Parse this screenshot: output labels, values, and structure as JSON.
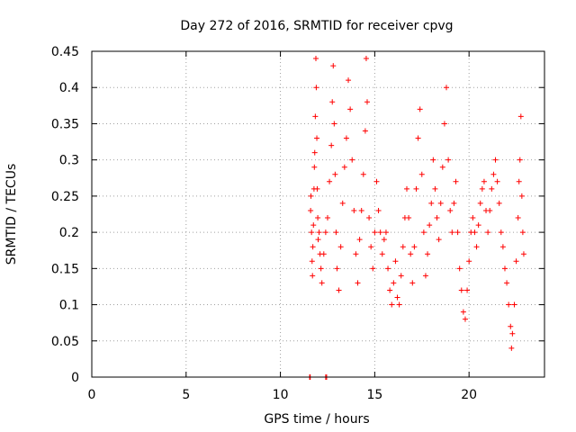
{
  "chart_data": {
    "type": "scatter",
    "title": "Day 272 of 2016, SRMTID for receiver cpvg",
    "xlabel": "GPS time / hours",
    "ylabel": "SRMTID / TECUs",
    "xlim": [
      0,
      24
    ],
    "ylim": [
      0,
      0.45
    ],
    "xticks": [
      "0",
      "5",
      "10",
      "15",
      "20"
    ],
    "yticks": [
      "0",
      "0.05",
      "0.1",
      "0.15",
      "0.2",
      "0.25",
      "0.3",
      "0.35",
      "0.4",
      "0.45"
    ],
    "grid": true,
    "marker": "+",
    "color": "#ff0000",
    "series": [
      {
        "points": [
          [
            11.55,
            0.0
          ],
          [
            11.58,
            0.0
          ],
          [
            12.4,
            0.0
          ],
          [
            12.45,
            0.0
          ],
          [
            11.6,
            0.23
          ],
          [
            11.62,
            0.25
          ],
          [
            11.65,
            0.2
          ],
          [
            11.68,
            0.16
          ],
          [
            11.7,
            0.14
          ],
          [
            11.72,
            0.18
          ],
          [
            11.75,
            0.21
          ],
          [
            11.78,
            0.26
          ],
          [
            11.8,
            0.29
          ],
          [
            11.82,
            0.31
          ],
          [
            11.85,
            0.36
          ],
          [
            11.88,
            0.44
          ],
          [
            11.9,
            0.4
          ],
          [
            11.93,
            0.33
          ],
          [
            11.95,
            0.26
          ],
          [
            11.98,
            0.22
          ],
          [
            12.0,
            0.19
          ],
          [
            12.05,
            0.2
          ],
          [
            12.1,
            0.17
          ],
          [
            12.15,
            0.15
          ],
          [
            12.2,
            0.13
          ],
          [
            12.3,
            0.17
          ],
          [
            12.4,
            0.2
          ],
          [
            12.5,
            0.22
          ],
          [
            12.6,
            0.27
          ],
          [
            12.7,
            0.32
          ],
          [
            12.75,
            0.38
          ],
          [
            12.8,
            0.43
          ],
          [
            12.85,
            0.35
          ],
          [
            12.9,
            0.28
          ],
          [
            12.95,
            0.2
          ],
          [
            13.0,
            0.15
          ],
          [
            13.1,
            0.12
          ],
          [
            13.2,
            0.18
          ],
          [
            13.3,
            0.24
          ],
          [
            13.4,
            0.29
          ],
          [
            13.5,
            0.33
          ],
          [
            13.6,
            0.41
          ],
          [
            13.7,
            0.37
          ],
          [
            13.8,
            0.3
          ],
          [
            13.9,
            0.23
          ],
          [
            14.0,
            0.17
          ],
          [
            14.1,
            0.13
          ],
          [
            14.2,
            0.19
          ],
          [
            14.3,
            0.23
          ],
          [
            14.4,
            0.28
          ],
          [
            14.5,
            0.34
          ],
          [
            14.55,
            0.44
          ],
          [
            14.6,
            0.38
          ],
          [
            14.7,
            0.22
          ],
          [
            14.8,
            0.18
          ],
          [
            14.9,
            0.15
          ],
          [
            15.0,
            0.2
          ],
          [
            15.1,
            0.27
          ],
          [
            15.2,
            0.23
          ],
          [
            15.3,
            0.2
          ],
          [
            15.4,
            0.17
          ],
          [
            15.5,
            0.19
          ],
          [
            15.6,
            0.2
          ],
          [
            15.7,
            0.15
          ],
          [
            15.8,
            0.12
          ],
          [
            15.9,
            0.1
          ],
          [
            16.0,
            0.13
          ],
          [
            16.1,
            0.16
          ],
          [
            16.2,
            0.11
          ],
          [
            16.3,
            0.1
          ],
          [
            16.4,
            0.14
          ],
          [
            16.5,
            0.18
          ],
          [
            16.6,
            0.22
          ],
          [
            16.7,
            0.26
          ],
          [
            16.8,
            0.22
          ],
          [
            16.9,
            0.17
          ],
          [
            17.0,
            0.13
          ],
          [
            17.1,
            0.18
          ],
          [
            17.2,
            0.26
          ],
          [
            17.3,
            0.33
          ],
          [
            17.4,
            0.37
          ],
          [
            17.5,
            0.28
          ],
          [
            17.6,
            0.2
          ],
          [
            17.7,
            0.14
          ],
          [
            17.8,
            0.17
          ],
          [
            17.9,
            0.21
          ],
          [
            18.0,
            0.24
          ],
          [
            18.1,
            0.3
          ],
          [
            18.2,
            0.26
          ],
          [
            18.3,
            0.22
          ],
          [
            18.4,
            0.19
          ],
          [
            18.5,
            0.24
          ],
          [
            18.6,
            0.29
          ],
          [
            18.7,
            0.35
          ],
          [
            18.8,
            0.4
          ],
          [
            18.9,
            0.3
          ],
          [
            19.0,
            0.23
          ],
          [
            19.1,
            0.2
          ],
          [
            19.2,
            0.24
          ],
          [
            19.3,
            0.27
          ],
          [
            19.4,
            0.2
          ],
          [
            19.5,
            0.15
          ],
          [
            19.6,
            0.12
          ],
          [
            19.7,
            0.09
          ],
          [
            19.8,
            0.08
          ],
          [
            19.9,
            0.12
          ],
          [
            20.0,
            0.16
          ],
          [
            20.1,
            0.2
          ],
          [
            20.2,
            0.22
          ],
          [
            20.3,
            0.2
          ],
          [
            20.4,
            0.18
          ],
          [
            20.5,
            0.21
          ],
          [
            20.6,
            0.24
          ],
          [
            20.7,
            0.26
          ],
          [
            20.8,
            0.27
          ],
          [
            20.9,
            0.23
          ],
          [
            21.0,
            0.2
          ],
          [
            21.1,
            0.23
          ],
          [
            21.2,
            0.26
          ],
          [
            21.3,
            0.28
          ],
          [
            21.4,
            0.3
          ],
          [
            21.5,
            0.27
          ],
          [
            21.6,
            0.24
          ],
          [
            21.7,
            0.2
          ],
          [
            21.8,
            0.18
          ],
          [
            21.9,
            0.15
          ],
          [
            22.0,
            0.13
          ],
          [
            22.1,
            0.1
          ],
          [
            22.2,
            0.07
          ],
          [
            22.25,
            0.04
          ],
          [
            22.3,
            0.06
          ],
          [
            22.4,
            0.1
          ],
          [
            22.5,
            0.16
          ],
          [
            22.6,
            0.22
          ],
          [
            22.65,
            0.27
          ],
          [
            22.7,
            0.3
          ],
          [
            22.75,
            0.36
          ],
          [
            22.8,
            0.25
          ],
          [
            22.85,
            0.2
          ],
          [
            22.9,
            0.17
          ]
        ]
      }
    ]
  }
}
